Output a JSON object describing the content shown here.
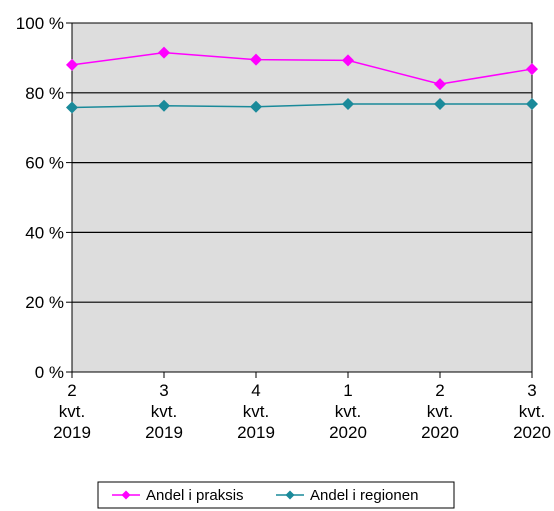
{
  "chart_data": {
    "type": "line",
    "categories": [
      [
        "2",
        "kvt.",
        "2019"
      ],
      [
        "3",
        "kvt.",
        "2019"
      ],
      [
        "4",
        "kvt.",
        "2019"
      ],
      [
        "1",
        "kvt.",
        "2020"
      ],
      [
        "2",
        "kvt.",
        "2020"
      ],
      [
        "3",
        "kvt.",
        "2020"
      ]
    ],
    "y_ticks": [
      "0 %",
      "20 %",
      "40 %",
      "60 %",
      "80 %",
      "100 %"
    ],
    "ylim": [
      0,
      100
    ],
    "grid": true,
    "legend_position": "bottom",
    "series": [
      {
        "name": "Andel i praksis",
        "values": [
          88,
          91.5,
          89.5,
          89.3,
          82.5,
          86.8
        ],
        "color": "#ff00ff",
        "marker": "diamond"
      },
      {
        "name": "Andel i regionen",
        "values": [
          75.8,
          76.3,
          76,
          76.8,
          76.8,
          76.8
        ],
        "color": "#1a8a9a",
        "marker": "diamond"
      }
    ]
  }
}
